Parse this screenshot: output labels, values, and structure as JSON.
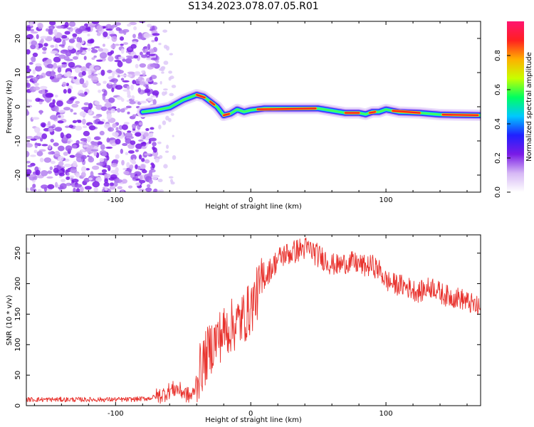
{
  "page": {
    "title": "S134.2023.078.07.05.R01"
  },
  "chart_data": [
    {
      "type": "heatmap",
      "xlabel": "Height of straight line (km)",
      "ylabel": "Frequency (Hz)",
      "xlim": [
        -166,
        170
      ],
      "ylim": [
        -25,
        25
      ],
      "x_ticks": [
        -100,
        0,
        100
      ],
      "y_ticks": [
        -20,
        -10,
        0,
        10,
        20
      ],
      "colorbar": {
        "label": "Normalized spectral amplitude",
        "range": [
          0,
          1
        ],
        "ticks": [
          "0.0",
          "0.2",
          "0.4",
          "0.6",
          "0.8"
        ],
        "colors": [
          "#ffffff",
          "#d6b8f5",
          "#7a1be6",
          "#2020ff",
          "#00c8ff",
          "#00ff60",
          "#c8ff00",
          "#ffb000",
          "#ff2020",
          "#ff1470"
        ]
      },
      "ridge": {
        "x": [
          -80,
          -70,
          -60,
          -50,
          -40,
          -35,
          -30,
          -25,
          -20,
          -15,
          -10,
          -5,
          0,
          10,
          50,
          70,
          80,
          85,
          90,
          95,
          100,
          110,
          125,
          140,
          170
        ],
        "freq": [
          -1.5,
          -1.0,
          -0.2,
          2.0,
          3.5,
          3.0,
          1.5,
          0.0,
          -2.5,
          -2.0,
          -0.8,
          -1.5,
          -1.0,
          -0.5,
          -0.5,
          -1.8,
          -1.8,
          -2.2,
          -1.5,
          -1.5,
          -0.8,
          -1.6,
          -1.8,
          -2.3,
          -2.5
        ]
      },
      "noise_region_x": [
        -166,
        -75
      ]
    },
    {
      "type": "line",
      "xlabel": "Height of straight line (km)",
      "ylabel": "SNR (10 * v/v)",
      "xlim": [
        -166,
        170
      ],
      "ylim": [
        0,
        280
      ],
      "x_ticks": [
        -100,
        0,
        100
      ],
      "y_ticks": [
        0,
        50,
        100,
        150,
        200,
        250
      ],
      "color": "#e8322d",
      "series": [
        {
          "x": [
            -166,
            -150,
            -130,
            -110,
            -90,
            -75,
            -65,
            -60,
            -55,
            -50,
            -45,
            -42,
            -40,
            -35,
            -30,
            -25,
            -20,
            -15,
            -10,
            -5,
            0,
            5,
            10,
            15,
            20,
            25,
            30,
            35,
            40,
            45,
            50,
            55,
            60,
            65,
            70,
            75,
            80,
            85,
            90,
            95,
            100,
            105,
            110,
            115,
            120,
            125,
            130,
            135,
            140,
            145,
            150,
            155,
            160,
            165,
            170
          ],
          "values": [
            10,
            10,
            10,
            10,
            10,
            12,
            18,
            25,
            28,
            22,
            15,
            20,
            45,
            70,
            95,
            110,
            120,
            130,
            135,
            145,
            160,
            185,
            210,
            225,
            240,
            248,
            250,
            255,
            258,
            255,
            245,
            240,
            232,
            230,
            234,
            235,
            232,
            228,
            230,
            222,
            205,
            200,
            198,
            195,
            190,
            186,
            192,
            195,
            185,
            180,
            178,
            176,
            170,
            165,
            158
          ]
        }
      ]
    }
  ]
}
